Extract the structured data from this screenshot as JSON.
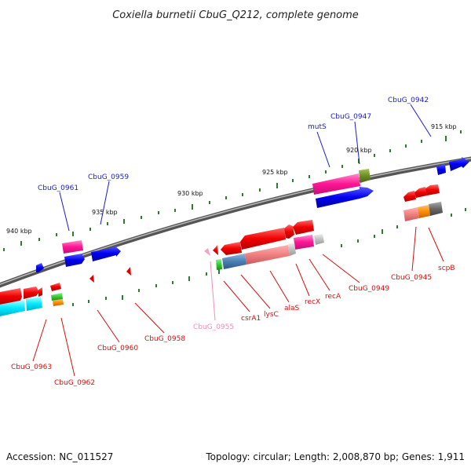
{
  "title": "Coxiella burnetii CbuG_Q212, complete genome",
  "footer": {
    "accession": "Accession: NC_011527",
    "topology": "Topology: circular; Length: 2,008,870 bp; Genes: 1,911"
  },
  "scale_labels": [
    "915 kbp",
    "920 kbp",
    "925 kbp",
    "930 kbp",
    "935 kbp",
    "940 kbp"
  ],
  "colors": {
    "backbone": "#7a7a7a",
    "tick": "#2e7d2e",
    "label_blue": "#1a1ad2",
    "label_red": "#d41010",
    "label_pink": "#f08cc0"
  },
  "forward_labels": [
    "CbuG_0942",
    "CbuG_0947",
    "mutS",
    "CbuG_0959",
    "CbuG_0961"
  ],
  "reverse_labels": [
    "CbuG_0945",
    "scpB",
    "CbuG_0949",
    "recA",
    "recX",
    "alaS",
    "lysC",
    "csrA1",
    "CbuG_0955",
    "CbuG_0958",
    "CbuG_0960",
    "CbuG_0962",
    "CbuG_0963"
  ]
}
